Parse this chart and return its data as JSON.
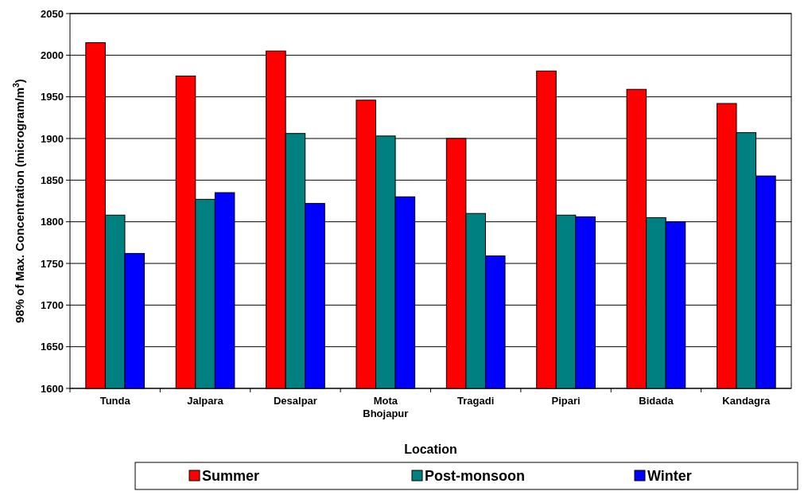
{
  "chart_data": {
    "type": "bar",
    "xlabel": "Location",
    "ylabel": "98% of Max. Concentration (microgram/m$^{3}$)",
    "categories": [
      "Tunda",
      "Jalpara",
      "Desalpar",
      "Mota Bhojapur",
      "Tragadi",
      "Pipari",
      "Bidada",
      "Kandagra"
    ],
    "series": [
      {
        "name": "Summer",
        "color": "#ff0000",
        "values": [
          2015,
          1975,
          2005,
          1946,
          1900,
          1981,
          1959,
          1942
        ]
      },
      {
        "name": "Post-monsoon",
        "color": "#008080",
        "values": [
          1808,
          1827,
          1906,
          1903,
          1810,
          1808,
          1805,
          1907
        ]
      },
      {
        "name": "Winter",
        "color": "#0000ff",
        "values": [
          1762,
          1835,
          1822,
          1830,
          1759,
          1806,
          1800,
          1855
        ]
      }
    ],
    "ylim": [
      1600,
      2050
    ],
    "yticks": [
      1600,
      1650,
      1700,
      1750,
      1800,
      1850,
      1900,
      1950,
      2000,
      2050
    ],
    "grid": "y",
    "legend": "bottom"
  }
}
